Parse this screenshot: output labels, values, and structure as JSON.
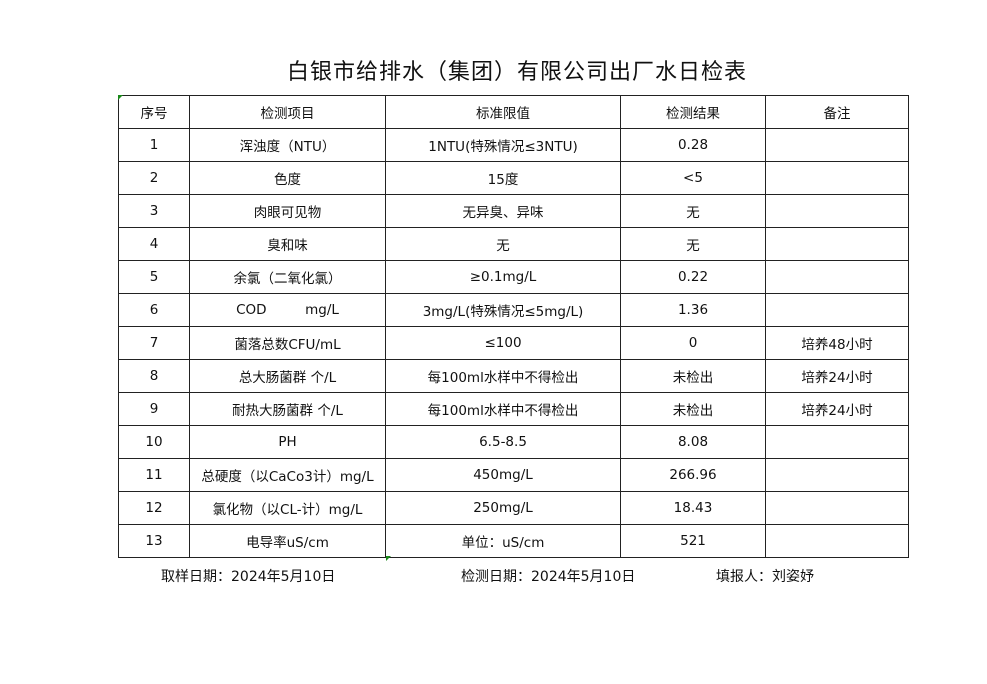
{
  "title": "白银市给排水（集团）有限公司出厂水日检表",
  "table": {
    "headers": [
      "序号",
      "检测项目",
      "标准限值",
      "检测结果",
      "备注"
    ],
    "rows": [
      [
        "1",
        "浑浊度（NTU）",
        "1NTU(特殊情况≤3NTU)",
        "0.28",
        ""
      ],
      [
        "2",
        "色度",
        "15度",
        "<5",
        ""
      ],
      [
        "3",
        "肉眼可见物",
        "无异臭、异味",
        "无",
        ""
      ],
      [
        "4",
        "臭和味",
        "无",
        "无",
        ""
      ],
      [
        "5",
        "余氯（二氧化氯）",
        "≥0.1mg/L",
        "0.22",
        ""
      ],
      [
        "6",
        "COD         mg/L",
        "3mg/L(特殊情况≤5mg/L)",
        "1.36",
        ""
      ],
      [
        "7",
        "菌落总数CFU/mL",
        "≤100",
        "0",
        "培养48小时"
      ],
      [
        "8",
        "总大肠菌群 个/L",
        "每100ml水样中不得检出",
        "未检出",
        "培养24小时"
      ],
      [
        "9",
        "耐热大肠菌群 个/L",
        "每100ml水样中不得检出",
        "未检出",
        "培养24小时"
      ],
      [
        "10",
        "PH",
        "6.5-8.5",
        "8.08",
        ""
      ],
      [
        "11",
        "总硬度（以CaCo3计）mg/L",
        "450mg/L",
        "266.96",
        ""
      ],
      [
        "12",
        "氯化物（以CL-计）mg/L",
        "250mg/L",
        "18.43",
        ""
      ],
      [
        "13",
        "电导率uS/cm",
        "单位：uS/cm",
        "521",
        ""
      ]
    ]
  },
  "footer": {
    "sampling_date": "取样日期：2024年5月10日",
    "test_date": "检测日期：2024年5月10日",
    "reporter": "填报人：刘姿妤"
  },
  "colors": {
    "cell_marker": "#1a8a1a"
  }
}
